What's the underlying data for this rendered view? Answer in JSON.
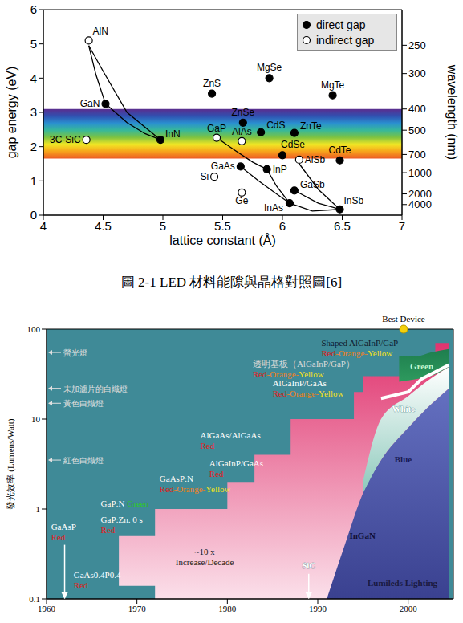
{
  "caption": "圖 2-1 LED 材料能隙與晶格對照圖[6]",
  "chart_data": [
    {
      "type": "scatter",
      "x_label": "lattice constant (Å)",
      "y_label": "gap energy (eV)",
      "y2_label": "wavelength (nm)",
      "xlim": [
        4,
        7
      ],
      "xticks": [
        4,
        4.5,
        5,
        5.5,
        6,
        6.5,
        7
      ],
      "ylim": [
        0,
        6
      ],
      "yticks": [
        0,
        1,
        2,
        3,
        4,
        5,
        6
      ],
      "y2ticks": [
        250,
        300,
        400,
        500,
        700,
        1000,
        2000,
        4000
      ],
      "hc": 1240,
      "legend": "upper right",
      "band": {
        "ylim": [
          1.65,
          3.1
        ],
        "colors": [
          "#5b2d8e",
          "#3050b0",
          "#2a8fd0",
          "#37b89a",
          "#7cc242",
          "#f2e624",
          "#f7a21b",
          "#ec5a24"
        ]
      },
      "series": [
        {
          "name": "direct gap",
          "color": "#000000",
          "marker": "filled",
          "labels": [
            "GaN",
            "InN",
            "ZnS",
            "MgSe",
            "MgTe",
            "ZnSe",
            "CdS",
            "ZnTe",
            "CdSe",
            "CdTe",
            "GaAs",
            "InP",
            "GaSb",
            "InAs",
            "InSb"
          ],
          "x": [
            4.52,
            4.98,
            5.41,
            5.89,
            6.42,
            5.67,
            5.82,
            6.1,
            6.0,
            6.48,
            5.65,
            5.87,
            6.1,
            6.06,
            6.48
          ],
          "y": [
            3.25,
            2.2,
            3.55,
            4.0,
            3.5,
            2.7,
            2.42,
            2.4,
            1.75,
            1.6,
            1.42,
            1.34,
            0.72,
            0.35,
            0.17
          ]
        },
        {
          "name": "indirect gap",
          "color": "#000000",
          "marker": "open",
          "labels": [
            "AlN",
            "3C-SiC",
            "GaP",
            "AlAs",
            "AlSb",
            "Si",
            "Ge"
          ],
          "x": [
            4.38,
            4.36,
            5.45,
            5.66,
            6.14,
            5.43,
            5.66
          ],
          "y": [
            5.1,
            2.2,
            2.26,
            2.16,
            1.62,
            1.12,
            0.66
          ]
        }
      ],
      "curves": {
        "color": "#000000",
        "lines": [
          {
            "x": [
              4.38,
              4.44,
              4.52
            ],
            "y": [
              4.95,
              4.1,
              3.25
            ]
          },
          {
            "x": [
              4.38,
              4.5,
              4.7,
              4.98
            ],
            "y": [
              4.95,
              4.2,
              3.0,
              2.2
            ]
          },
          {
            "x": [
              4.52,
              4.7,
              4.85,
              4.98
            ],
            "y": [
              3.25,
              2.7,
              2.38,
              2.2
            ]
          },
          {
            "x": [
              5.45,
              5.6,
              5.75,
              5.87
            ],
            "y": [
              2.26,
              1.9,
              1.55,
              1.34
            ]
          },
          {
            "x": [
              5.65,
              5.8,
              5.95,
              6.06
            ],
            "y": [
              1.42,
              1.0,
              0.62,
              0.35
            ]
          },
          {
            "x": [
              5.87,
              5.95,
              6.06
            ],
            "y": [
              1.34,
              0.85,
              0.35
            ]
          },
          {
            "x": [
              6.06,
              6.25,
              6.48
            ],
            "y": [
              0.35,
              0.12,
              0.17
            ]
          },
          {
            "x": [
              6.1,
              6.3,
              6.48
            ],
            "y": [
              0.72,
              0.35,
              0.17
            ]
          },
          {
            "x": [
              6.14,
              6.3,
              6.48
            ],
            "y": [
              1.5,
              0.75,
              0.17
            ]
          }
        ]
      }
    },
    {
      "type": "area",
      "y_label": "發光效率 (Lumens/Watt)",
      "log": "y",
      "xlim": [
        1960,
        2005
      ],
      "xticks": [
        1960,
        1970,
        1980,
        1990,
        2000
      ],
      "ylim": [
        0.1,
        100
      ],
      "yticks": [
        0.1,
        1,
        10,
        100
      ],
      "series": [
        {
          "color": "#e0356f",
          "line_style": "step",
          "x": [
            1968,
            1972,
            1980,
            1983,
            1987,
            1994,
            1995,
            2000,
            2003,
            2004.5
          ],
          "low": [
            0.14,
            0.1,
            0.1,
            0.1,
            0.1,
            0.1,
            0.1,
            0.1,
            0.1,
            0.1
          ],
          "high": [
            0.5,
            1,
            2,
            4,
            10,
            20,
            30,
            50,
            70,
            70
          ]
        },
        {
          "color": "#6470c0",
          "x": [
            1991,
            1993,
            1995,
            1997,
            2000,
            2002,
            2004.5
          ],
          "low": [
            0.1,
            0.1,
            0.1,
            0.1,
            0.1,
            0.1,
            0.1
          ],
          "high": [
            0.1,
            0.4,
            1.5,
            3.5,
            8,
            13,
            22
          ]
        },
        {
          "color": "#ffffff",
          "x": [
            1995,
            1997,
            2000,
            2002,
            2004.5
          ],
          "low": [
            1.5,
            3.5,
            8,
            13,
            22
          ],
          "high": [
            2,
            10,
            18,
            26,
            38
          ]
        },
        {
          "color": "#1e7e4e",
          "x": [
            1999,
            2001,
            2002.5,
            2004.5
          ],
          "low": [
            26,
            28,
            30,
            38
          ],
          "high": [
            50,
            50,
            55,
            60
          ]
        },
        {
          "type": "line",
          "color": "#ffffff",
          "x": [
            1997,
            2000,
            2001.5,
            2004.5
          ],
          "values": [
            17,
            20,
            28,
            40
          ]
        }
      ],
      "annotations": [
        {
          "lines": [
            [
              {
                "text": "Shaped AlGaInP/GaP",
                "color": "#102030"
              }
            ],
            [
              {
                "text": "Red",
                "color": "#e02020"
              },
              {
                "text": "-Orange-",
                "color": "#f08020"
              },
              {
                "text": "Yellow",
                "color": "#f5e020"
              }
            ]
          ]
        },
        {
          "lines": [
            [
              {
                "text": "透明基板（AlGaInP/GaP）",
                "color": "#d8d8d8"
              }
            ],
            [
              {
                "text": "Red",
                "color": "#e02020"
              },
              {
                "text": "-Orange-",
                "color": "#f08020"
              },
              {
                "text": "Yellow",
                "color": "#f5e020"
              }
            ]
          ]
        },
        {
          "lines": [
            [
              {
                "text": "AlGaInP/GaAs",
                "color": "#ffffff"
              }
            ],
            [
              {
                "text": "Red",
                "color": "#e02020"
              },
              {
                "text": "-Orange-",
                "color": "#f08020"
              },
              {
                "text": "Yellow",
                "color": "#f5e020"
              }
            ]
          ]
        },
        {
          "lines": [
            [
              {
                "text": "AlGaAs/AlGaAs",
                "color": "#ffffff"
              }
            ],
            [
              {
                "text": "Red",
                "color": "#e02020"
              }
            ]
          ]
        },
        {
          "lines": [
            [
              {
                "text": "AlGaInP/GaAs",
                "color": "#ffffff"
              }
            ],
            [
              {
                "text": "Red",
                "color": "#e02020"
              }
            ]
          ]
        },
        {
          "lines": [
            [
              {
                "text": "GaAsP:N",
                "color": "#ffffff"
              }
            ],
            [
              {
                "text": "Red",
                "color": "#e02020"
              },
              {
                "text": "-Orange-",
                "color": "#f08020"
              },
              {
                "text": "Yellow",
                "color": "#f5e020"
              }
            ]
          ]
        },
        {
          "lines": [
            [
              {
                "text": "GaP:N ",
                "color": "#ffffff"
              },
              {
                "text": "Green",
                "color": "#30d030"
              }
            ]
          ]
        },
        {
          "lines": [
            [
              {
                "text": "GaP:Zn. 0 s",
                "color": "#ffffff"
              }
            ],
            [
              {
                "text": "Red",
                "color": "#e02020"
              }
            ]
          ]
        },
        {
          "lines": [
            [
              {
                "text": "~10 x",
                "color": "#1a1a1a"
              }
            ],
            [
              {
                "text": "Increase/Decade",
                "color": "#1a1a1a"
              }
            ]
          ]
        },
        {
          "lines": [
            [
              {
                "text": "GaAs0.4P0.4",
                "color": "#ffffff"
              }
            ],
            [
              {
                "text": "Red",
                "color": "#e02020"
              }
            ]
          ]
        },
        {
          "lines": [
            [
              {
                "text": "GaAsP",
                "color": "#ffffff"
              }
            ],
            [
              {
                "text": "Red",
                "color": "#e02020"
              }
            ]
          ],
          "year": 1962
        },
        {
          "lines": [
            [
              {
                "text": "SiC",
                "color": "#ffffff"
              }
            ]
          ],
          "year": 1989
        },
        {
          "lines": [
            [
              {
                "text": "InGaN",
                "color": "#10103a"
              }
            ]
          ]
        },
        {
          "lines": [
            [
              {
                "text": "Blue",
                "color": "#1a1a50"
              }
            ]
          ]
        },
        {
          "lines": [
            [
              {
                "text": "White",
                "color": "#ffffff"
              }
            ]
          ]
        },
        {
          "lines": [
            [
              {
                "text": "Green",
                "color": "#c8f5c8"
              }
            ]
          ]
        },
        {
          "lines": [
            [
              {
                "text": "Lumileds Lighting",
                "color": "#1a1a40"
              }
            ]
          ]
        }
      ],
      "reference_lamps": {
        "labels": [
          "螢光燈",
          "未加濾片的白熾燈",
          "黃色白熾燈",
          "紅色白熾燈"
        ],
        "values": [
          55,
          22,
          15,
          3.5
        ],
        "color": "#e0e0e0"
      },
      "best_device": {
        "label": "Best Device",
        "x": 1999.5,
        "y": 100,
        "color": "#f5d00a"
      }
    }
  ]
}
